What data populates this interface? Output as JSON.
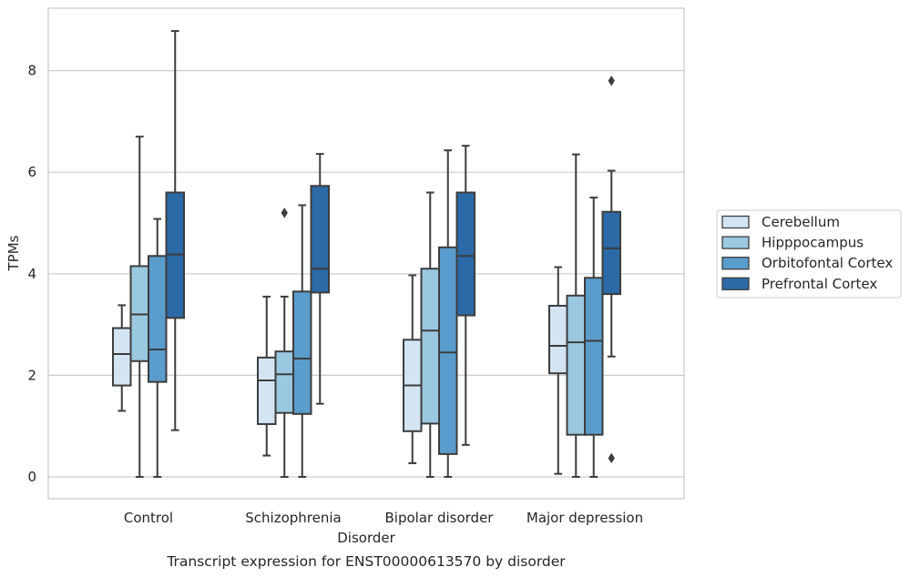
{
  "chart_data": {
    "type": "box",
    "caption": "Transcript expression for ENST00000613570 by disorder",
    "xlabel": "Disorder",
    "ylabel": "TPMs",
    "ylim": [
      -0.4,
      9.25
    ],
    "yticks": [
      0,
      2,
      4,
      6,
      8
    ],
    "grid": "horizontal",
    "legend_position": "right",
    "categories": [
      "Control",
      "Schizophrenia",
      "Bipolar disorder",
      "Major depression"
    ],
    "series": [
      {
        "name": "Cerebellum",
        "color": "#d3e4f3",
        "boxes": [
          {
            "whisker_low": 1.3,
            "q1": 1.8,
            "median": 2.42,
            "q3": 2.93,
            "whisker_high": 3.38,
            "outliers": []
          },
          {
            "whisker_low": 0.42,
            "q1": 1.04,
            "median": 1.9,
            "q3": 2.35,
            "whisker_high": 3.55,
            "outliers": []
          },
          {
            "whisker_low": 0.27,
            "q1": 0.9,
            "median": 1.8,
            "q3": 2.7,
            "whisker_high": 3.97,
            "outliers": []
          },
          {
            "whisker_low": 0.06,
            "q1": 2.04,
            "median": 2.58,
            "q3": 3.37,
            "whisker_high": 4.13,
            "outliers": []
          }
        ]
      },
      {
        "name": "Hipppocampus",
        "color": "#9ac8e0",
        "boxes": [
          {
            "whisker_low": 0.0,
            "q1": 2.28,
            "median": 3.2,
            "q3": 4.15,
            "whisker_high": 6.7,
            "outliers": []
          },
          {
            "whisker_low": 0.0,
            "q1": 1.26,
            "median": 2.02,
            "q3": 2.47,
            "whisker_high": 3.55,
            "outliers": [
              5.2
            ]
          },
          {
            "whisker_low": 0.0,
            "q1": 1.05,
            "median": 2.88,
            "q3": 4.1,
            "whisker_high": 5.6,
            "outliers": []
          },
          {
            "whisker_low": 0.0,
            "q1": 0.83,
            "median": 2.65,
            "q3": 3.57,
            "whisker_high": 6.35,
            "outliers": []
          }
        ]
      },
      {
        "name": "Orbitofontal Cortex",
        "color": "#5a9ccc",
        "boxes": [
          {
            "whisker_low": 0.0,
            "q1": 1.87,
            "median": 2.51,
            "q3": 4.35,
            "whisker_high": 5.08,
            "outliers": []
          },
          {
            "whisker_low": 0.0,
            "q1": 1.24,
            "median": 2.33,
            "q3": 3.65,
            "whisker_high": 5.35,
            "outliers": []
          },
          {
            "whisker_low": 0.0,
            "q1": 0.45,
            "median": 2.45,
            "q3": 4.52,
            "whisker_high": 6.43,
            "outliers": []
          },
          {
            "whisker_low": 0.0,
            "q1": 0.83,
            "median": 2.68,
            "q3": 3.92,
            "whisker_high": 5.5,
            "outliers": []
          }
        ]
      },
      {
        "name": "Prefrontal Cortex",
        "color": "#2b6aa7",
        "boxes": [
          {
            "whisker_low": 0.92,
            "q1": 3.13,
            "median": 4.38,
            "q3": 5.6,
            "whisker_high": 8.78,
            "outliers": []
          },
          {
            "whisker_low": 1.44,
            "q1": 3.63,
            "median": 4.1,
            "q3": 5.73,
            "whisker_high": 6.36,
            "outliers": []
          },
          {
            "whisker_low": 0.63,
            "q1": 3.18,
            "median": 4.35,
            "q3": 5.6,
            "whisker_high": 6.52,
            "outliers": []
          },
          {
            "whisker_low": 2.37,
            "q1": 3.6,
            "median": 4.5,
            "q3": 5.22,
            "whisker_high": 6.03,
            "outliers": [
              7.8,
              0.37
            ]
          }
        ]
      }
    ]
  }
}
